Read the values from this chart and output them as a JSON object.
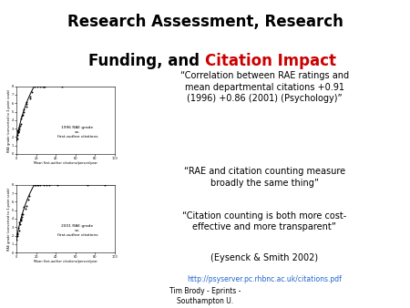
{
  "title_line1": "Research Assessment, Research",
  "title_line2_black": "Funding, and ",
  "title_line2_red": "Citation Impact",
  "quote1": "“Correlation between RAE ratings and\nmean departmental citations +0.91\n(1996) +0.86 (2001) (Psychology)”",
  "quote2": "“RAE and citation counting measure\nbroadly the same thing”",
  "quote3": "“Citation counting is both more cost-\neffective and more transparent”",
  "reference": "(Eysenck & Smith 2002)",
  "url": "http://psyserver.pc.rhbnc.ac.uk/citations.pdf",
  "footer": "Tim Brody - Eprints -\nSouthampton U.",
  "background_color": "#ffffff",
  "title_color": "#000000",
  "red_color": "#cc0000",
  "text_color": "#000000",
  "url_color": "#2266cc",
  "plot1_label": "1996 RAE grade\nvs.\nfirst-author citations",
  "plot2_label": "2001 RAE grade\nvs.\nfirst-author citations",
  "plot_xlabel": "Mean first-author citations/person/year",
  "plot_ylabel1": "RAE grade (converted to 3-point scale)",
  "plot_ylabel2": "RAE grade (converted to 3-point scale)"
}
